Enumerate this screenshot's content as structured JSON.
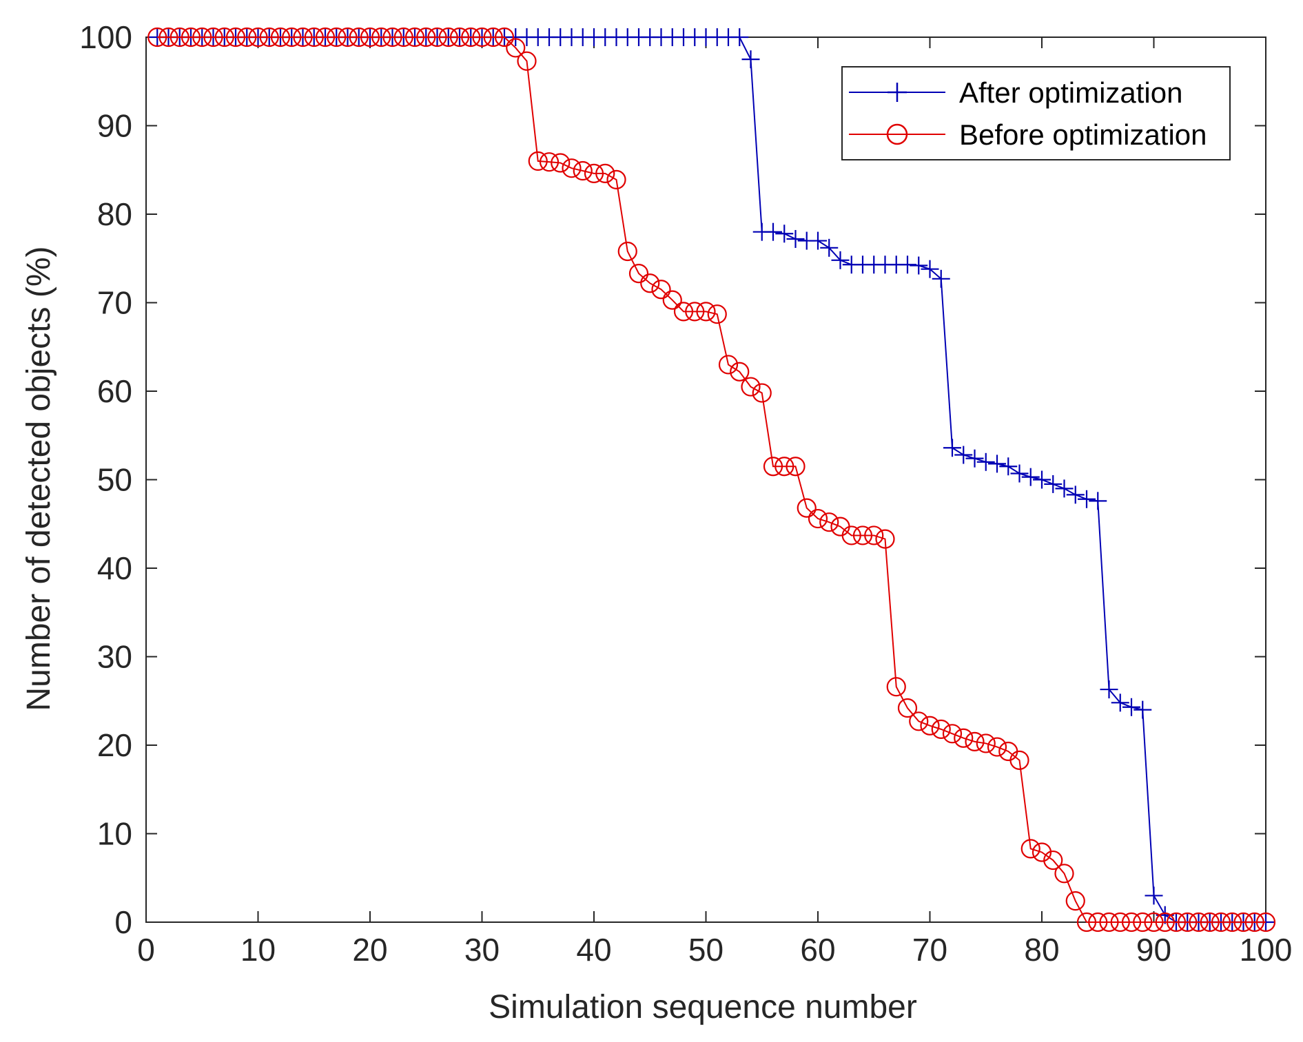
{
  "chart_data": {
    "type": "line",
    "title": "",
    "xlabel": "Simulation sequence number",
    "ylabel": "Number of detected objects (%)",
    "xlim": [
      0,
      100
    ],
    "ylim": [
      0,
      100
    ],
    "xticks": [
      0,
      10,
      20,
      30,
      40,
      50,
      60,
      70,
      80,
      90,
      100
    ],
    "yticks": [
      0,
      10,
      20,
      30,
      40,
      50,
      60,
      70,
      80,
      90,
      100
    ],
    "x_tick_labels": [
      "0",
      "10",
      "20",
      "30",
      "40",
      "50",
      "60",
      "70",
      "80",
      "90",
      "100"
    ],
    "y_tick_labels": [
      "0",
      "10",
      "20",
      "30",
      "40",
      "50",
      "60",
      "70",
      "80",
      "90",
      "100"
    ],
    "grid": false,
    "legend_position": "top-right",
    "x": [
      1,
      2,
      3,
      4,
      5,
      6,
      7,
      8,
      9,
      10,
      11,
      12,
      13,
      14,
      15,
      16,
      17,
      18,
      19,
      20,
      21,
      22,
      23,
      24,
      25,
      26,
      27,
      28,
      29,
      30,
      31,
      32,
      33,
      34,
      35,
      36,
      37,
      38,
      39,
      40,
      41,
      42,
      43,
      44,
      45,
      46,
      47,
      48,
      49,
      50,
      51,
      52,
      53,
      54,
      55,
      56,
      57,
      58,
      59,
      60,
      61,
      62,
      63,
      64,
      65,
      66,
      67,
      68,
      69,
      70,
      71,
      72,
      73,
      74,
      75,
      76,
      77,
      78,
      79,
      80,
      81,
      82,
      83,
      84,
      85,
      86,
      87,
      88,
      89,
      90,
      91,
      92,
      93,
      94,
      95,
      96,
      97,
      98,
      99,
      100
    ],
    "series": [
      {
        "name": "After optimization",
        "color": "#0000b4",
        "marker": "plus",
        "values": [
          100,
          100,
          100,
          100,
          100,
          100,
          100,
          100,
          100,
          100,
          100,
          100,
          100,
          100,
          100,
          100,
          100,
          100,
          100,
          100,
          100,
          100,
          100,
          100,
          100,
          100,
          100,
          100,
          100,
          100,
          100,
          100,
          100,
          100,
          100,
          100,
          100,
          100,
          100,
          100,
          100,
          100,
          100,
          100,
          100,
          100,
          100,
          100,
          100,
          100,
          100,
          100,
          100,
          97.5,
          78,
          78,
          77.8,
          77.2,
          77,
          77,
          76.2,
          74.8,
          74.3,
          74.3,
          74.3,
          74.3,
          74.3,
          74.3,
          74.2,
          73.8,
          72.7,
          53.6,
          52.8,
          52.4,
          52,
          51.8,
          51.5,
          50.7,
          50.3,
          50,
          49.5,
          49,
          48.3,
          47.8,
          47.6,
          26.3,
          24.8,
          24.3,
          24,
          3,
          0.8,
          0,
          0,
          0,
          0,
          0,
          0,
          0,
          0,
          0
        ]
      },
      {
        "name": "Before optimization",
        "color": "#e00000",
        "marker": "circle",
        "values": [
          100,
          100,
          100,
          100,
          100,
          100,
          100,
          100,
          100,
          100,
          100,
          100,
          100,
          100,
          100,
          100,
          100,
          100,
          100,
          100,
          100,
          100,
          100,
          100,
          100,
          100,
          100,
          100,
          100,
          100,
          100,
          100,
          98.8,
          97.3,
          86,
          85.9,
          85.8,
          85.2,
          84.9,
          84.6,
          84.6,
          83.9,
          75.8,
          73.3,
          72.2,
          71.5,
          70.3,
          69,
          69,
          69,
          68.7,
          63,
          62.2,
          60.5,
          59.8,
          51.5,
          51.5,
          51.5,
          46.8,
          45.6,
          45.2,
          44.7,
          43.7,
          43.7,
          43.7,
          43.3,
          26.6,
          24.2,
          22.7,
          22.2,
          21.8,
          21.3,
          20.8,
          20.4,
          20.2,
          19.8,
          19.3,
          18.3,
          8.3,
          7.9,
          7,
          5.5,
          2.4,
          0,
          0,
          0,
          0,
          0,
          0,
          0,
          0,
          0,
          0,
          0,
          0,
          0,
          0,
          0,
          0,
          0
        ]
      }
    ]
  }
}
